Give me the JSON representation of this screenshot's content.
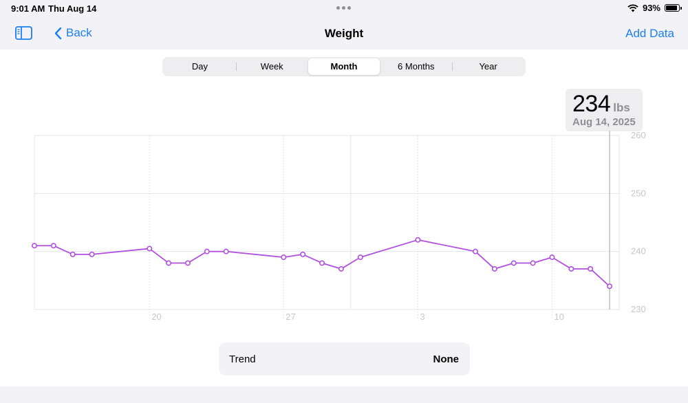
{
  "status_bar": {
    "time": "9:01 AM",
    "date": "Thu Aug 14",
    "battery": "93%"
  },
  "nav": {
    "back_label": "Back",
    "title": "Weight",
    "add_label": "Add Data"
  },
  "segments": [
    {
      "label": "Day",
      "selected": false
    },
    {
      "label": "Week",
      "selected": false
    },
    {
      "label": "Month",
      "selected": true
    },
    {
      "label": "6 Months",
      "selected": false
    },
    {
      "label": "Year",
      "selected": false
    }
  ],
  "callout": {
    "value": "234",
    "unit": "lbs",
    "date": "Aug 14, 2025"
  },
  "trend": {
    "label": "Trend",
    "value": "None"
  },
  "colors": {
    "accent": "#1a7ff5",
    "line": "#b04fe0",
    "grid": "#e5e5ea",
    "axis_text": "#c7c7cc"
  },
  "chart_data": {
    "type": "line",
    "x_tick_labels": [
      "20",
      "27",
      "3",
      "10"
    ],
    "x_tick_days": [
      6,
      13,
      20,
      27
    ],
    "x_range_days": [
      0,
      30.5
    ],
    "ylim": [
      230,
      260
    ],
    "y_ticks": [
      230,
      240,
      250,
      260
    ],
    "grid": true,
    "series": [
      {
        "points": [
          {
            "day": 0,
            "weight": 241
          },
          {
            "day": 1,
            "weight": 241
          },
          {
            "day": 2,
            "weight": 239.5
          },
          {
            "day": 3,
            "weight": 239.5
          },
          {
            "day": 6,
            "weight": 240.5
          },
          {
            "day": 7,
            "weight": 238
          },
          {
            "day": 8,
            "weight": 238
          },
          {
            "day": 9,
            "weight": 240
          },
          {
            "day": 10,
            "weight": 240
          },
          {
            "day": 13,
            "weight": 239
          },
          {
            "day": 14,
            "weight": 239.5
          },
          {
            "day": 15,
            "weight": 238
          },
          {
            "day": 16,
            "weight": 237
          },
          {
            "day": 17,
            "weight": 239
          },
          {
            "day": 20,
            "weight": 242
          },
          {
            "day": 23,
            "weight": 240
          },
          {
            "day": 24,
            "weight": 237
          },
          {
            "day": 25,
            "weight": 238
          },
          {
            "day": 26,
            "weight": 238
          },
          {
            "day": 27,
            "weight": 239
          },
          {
            "day": 28,
            "weight": 237
          },
          {
            "day": 29,
            "weight": 237
          },
          {
            "day": 30,
            "weight": 234
          }
        ]
      }
    ]
  }
}
